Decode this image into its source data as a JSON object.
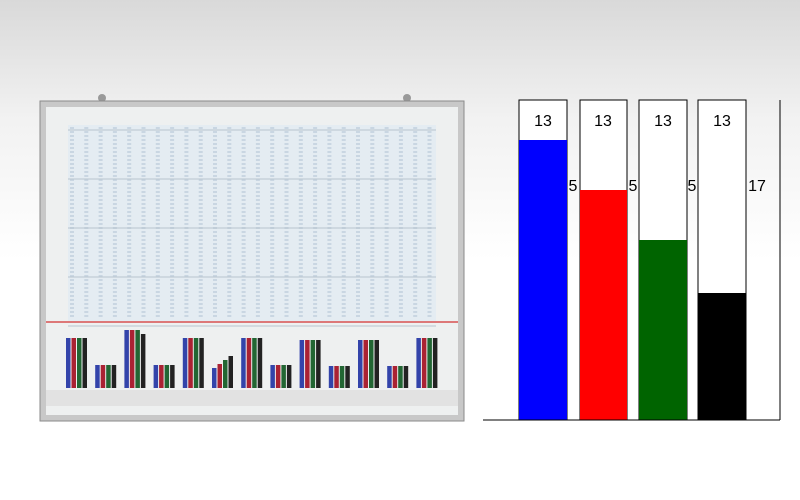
{
  "columns": [
    {
      "top_label": "13",
      "side_label": "5"
    },
    {
      "top_label": "13",
      "side_label": "5"
    },
    {
      "top_label": "13",
      "side_label": "5"
    },
    {
      "top_label": "13",
      "side_label": "17"
    }
  ]
}
